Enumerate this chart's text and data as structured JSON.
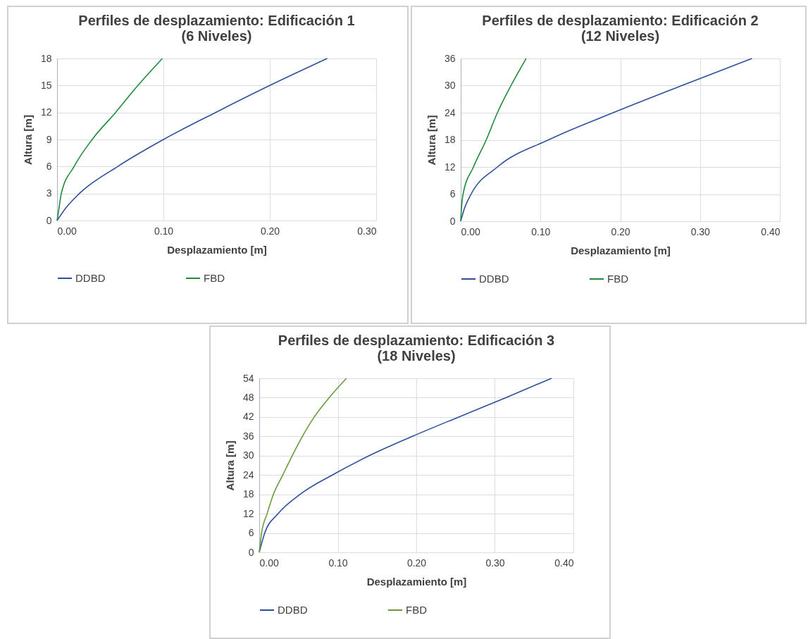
{
  "chart_data": [
    {
      "type": "line",
      "title": [
        "Perfiles de desplazamiento: Edificación 1",
        "(6 Niveles)"
      ],
      "xlabel": "Desplazamiento [m]",
      "ylabel": "Altura [m]",
      "xlim": [
        0,
        0.3
      ],
      "xticks": [
        {
          "value": 0,
          "label": "0.00"
        },
        {
          "value": 0.1,
          "label": "0.10"
        },
        {
          "value": 0.2,
          "label": "0.20"
        },
        {
          "value": 0.3,
          "label": "0.30"
        }
      ],
      "ylim": [
        0,
        18
      ],
      "yticks": [
        0,
        3,
        6,
        9,
        12,
        15,
        18
      ],
      "grid": true,
      "legend": "bottom",
      "series": [
        {
          "name": "DDBD",
          "color": "#2f4f9c",
          "x": [
            0,
            0.009,
            0.021,
            0.057,
            0.1,
            0.149,
            0.2,
            0.254
          ],
          "values": [
            0,
            1.5,
            3,
            6,
            9,
            12,
            15,
            18
          ]
        },
        {
          "name": "FBD",
          "color": "#1f8a3a",
          "x": [
            0,
            0.002,
            0.004,
            0.016,
            0.033,
            0.055,
            0.076,
            0.099
          ],
          "values": [
            0,
            1.5,
            3,
            6,
            9,
            12,
            15,
            18
          ]
        }
      ]
    },
    {
      "type": "line",
      "title": [
        "Perfiles de desplazamiento: Edificación 2",
        "(12 Niveles)"
      ],
      "xlabel": "Desplazamiento [m]",
      "ylabel": "Altura [m]",
      "xlim": [
        0,
        0.4
      ],
      "xticks": [
        {
          "value": 0,
          "label": "0.00"
        },
        {
          "value": 0.1,
          "label": "0.10"
        },
        {
          "value": 0.2,
          "label": "0.20"
        },
        {
          "value": 0.3,
          "label": "0.30"
        },
        {
          "value": 0.4,
          "label": "0.40"
        }
      ],
      "ylim": [
        0,
        36
      ],
      "yticks": [
        0,
        6,
        12,
        18,
        24,
        30,
        36
      ],
      "grid": true,
      "legend": "bottom",
      "series": [
        {
          "name": "DDBD",
          "color": "#2f4f9c",
          "x": [
            0,
            0.005,
            0.013,
            0.046,
            0.11,
            0.191,
            0.277,
            0.365
          ],
          "values": [
            0,
            3,
            6,
            12,
            18,
            24,
            30,
            36
          ]
        },
        {
          "name": "FBD",
          "color": "#1f8a3a",
          "x": [
            0,
            0.001,
            0.003,
            0.016,
            0.032,
            0.046,
            0.063,
            0.082
          ],
          "values": [
            0,
            3,
            6,
            12,
            18,
            24,
            30,
            36
          ]
        }
      ]
    },
    {
      "type": "line",
      "title": [
        "Perfiles de desplazamiento: Edificación 3",
        "(18 Niveles)"
      ],
      "xlabel": "Desplazamiento [m]",
      "ylabel": "Altura [m]",
      "xlim": [
        0,
        0.4
      ],
      "xticks": [
        {
          "value": 0,
          "label": "0.00"
        },
        {
          "value": 0.1,
          "label": "0.10"
        },
        {
          "value": 0.2,
          "label": "0.20"
        },
        {
          "value": 0.3,
          "label": "0.30"
        },
        {
          "value": 0.4,
          "label": "0.40"
        }
      ],
      "ylim": [
        0,
        54
      ],
      "yticks": [
        0,
        6,
        12,
        18,
        24,
        30,
        36,
        42,
        48,
        54
      ],
      "grid": true,
      "legend": "bottom",
      "series": [
        {
          "name": "DDBD",
          "color": "#2f4f9c",
          "x": [
            0,
            0.007,
            0.024,
            0.052,
            0.093,
            0.14,
            0.195,
            0.254,
            0.314,
            0.372
          ],
          "values": [
            0,
            6,
            12,
            18,
            24,
            30,
            36,
            42,
            48,
            54
          ]
        },
        {
          "name": "FBD",
          "color": "#6b9a3c",
          "x": [
            0,
            0.003,
            0.01,
            0.018,
            0.03,
            0.042,
            0.055,
            0.07,
            0.089,
            0.111
          ],
          "values": [
            0,
            6,
            12,
            18,
            24,
            30,
            36,
            42,
            48,
            54
          ]
        }
      ]
    }
  ]
}
